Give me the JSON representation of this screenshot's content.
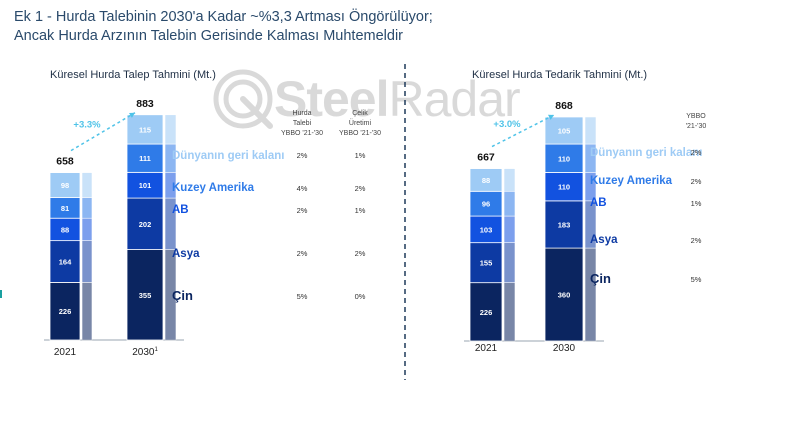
{
  "title": {
    "line1": "Ek 1 - Hurda Talebinin 2030'a Kadar ~%3,3 Artması Öngörülüyor;",
    "line2": "Ancak Hurda Arzının Talebin Gerisinde Kalması Muhtemeldir"
  },
  "watermark": {
    "bold": "Steel",
    "light": "Radar"
  },
  "colors": {
    "cin": "#0b2560",
    "asya": "#0d3aa3",
    "ab": "#1252e0",
    "kuzey_amerika": "#2f7be8",
    "dunya": "#9ecbf5",
    "accent": "#4fc3e8",
    "text_dark": "#0b2560"
  },
  "chart_data": [
    {
      "type": "bar",
      "title": "Küresel Hurda Talep Tahmini (Mt.)",
      "categories": [
        "2021",
        "2030"
      ],
      "category_labels": [
        "2021",
        "2030"
      ],
      "category_label_sup": [
        "",
        "1"
      ],
      "totals": [
        "658",
        "883"
      ],
      "growth_label": "+3.3%",
      "col_headers": [
        [
          "Hurda",
          "Talebi",
          "YBBO '21-'30"
        ],
        [
          "Çelik",
          "Üretimi",
          "YBBO '21-'30"
        ]
      ],
      "series": [
        {
          "name": "Çin",
          "values": [
            226,
            355
          ],
          "col1": "5%",
          "col2": "0%"
        },
        {
          "name": "Asya",
          "values": [
            164,
            202
          ],
          "col1": "2%",
          "col2": "2%"
        },
        {
          "name": "AB",
          "values": [
            88,
            101
          ],
          "col1": "2%",
          "col2": "1%"
        },
        {
          "name": "Kuzey Amerika",
          "values": [
            81,
            111
          ],
          "col1": "4%",
          "col2": "2%"
        },
        {
          "name": "Dünyanın geri kalanı",
          "values": [
            98,
            115
          ],
          "col1": "2%",
          "col2": "1%"
        }
      ]
    },
    {
      "type": "bar",
      "title": "Küresel Hurda Tedarik Tahmini (Mt.)",
      "categories": [
        "2021",
        "2030"
      ],
      "category_labels": [
        "2021",
        "2030"
      ],
      "category_label_sup": [
        "",
        ""
      ],
      "totals": [
        "667",
        "868"
      ],
      "growth_label": "+3.0%",
      "col_headers": [
        [
          "YBBO",
          "'21-'30"
        ]
      ],
      "series": [
        {
          "name": "Çin",
          "values": [
            226,
            360
          ],
          "col1": "5%"
        },
        {
          "name": "Asya",
          "values": [
            155,
            183
          ],
          "col1": "2%"
        },
        {
          "name": "AB",
          "values": [
            103,
            110
          ],
          "col1": "1%"
        },
        {
          "name": "Kuzey Amerika",
          "values": [
            96,
            110
          ],
          "col1": "2%"
        },
        {
          "name": "Dünyanın geri kalanı",
          "values": [
            88,
            105
          ],
          "col1": "2%"
        }
      ]
    }
  ]
}
